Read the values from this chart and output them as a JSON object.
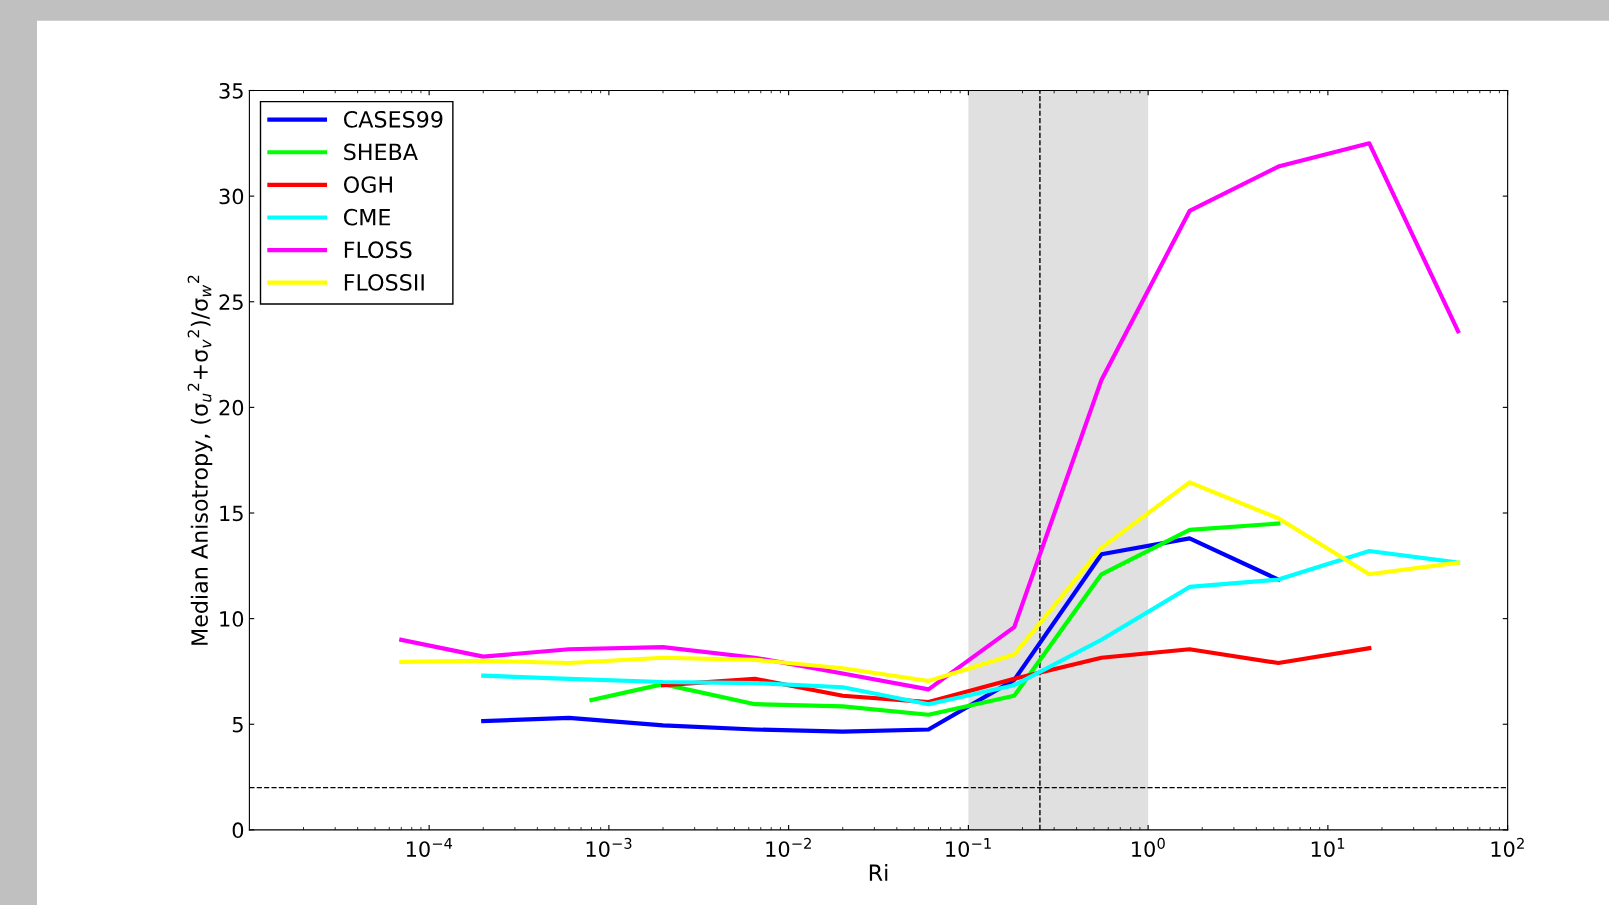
{
  "chart_data": {
    "type": "line",
    "xlabel": "Ri",
    "ylabel": "Median Anisotropy, (σ$_{u}$$^{2}$+σ$_{v}$$^{2}$)/σ$_{w}$$^{2}$",
    "log": "x",
    "xlim": [
      1e-05,
      100
    ],
    "ylim": [
      0,
      35
    ],
    "xticks": [
      {
        "value": 0.0001,
        "label": "10$^{−4}$"
      },
      {
        "value": 0.001,
        "label": "10$^{−3}$"
      },
      {
        "value": 0.01,
        "label": "10$^{−2}$"
      },
      {
        "value": 0.1,
        "label": "10$^{−1}$"
      },
      {
        "value": 1,
        "label": "10$^{0}$"
      },
      {
        "value": 10,
        "label": "10$^{1}$"
      },
      {
        "value": 100,
        "label": "10$^{2}$"
      }
    ],
    "yticks": [
      0,
      5,
      10,
      15,
      20,
      25,
      30,
      35
    ],
    "grid": false,
    "legend": "top left",
    "marker": "none",
    "line_style": "solid",
    "bands": [
      {
        "axis": "x",
        "from": 0.1,
        "to": 1,
        "color": "#e0e0e0"
      }
    ],
    "ref_lines": [
      {
        "axis": "x",
        "value": 0.25,
        "color": "#000000",
        "line_style": "dashed"
      },
      {
        "axis": "y",
        "value": 2,
        "color": "#000000",
        "line_style": "dashed"
      }
    ],
    "series": [
      {
        "name": "CASES99",
        "color": "#0000ff",
        "x": [
          0.0002,
          0.0006,
          0.002,
          0.0065,
          0.02,
          0.06,
          0.18,
          0.55,
          1.7,
          5.3
        ],
        "values": [
          5.15,
          5.3,
          4.95,
          4.75,
          4.65,
          4.75,
          7.1,
          13.05,
          13.8,
          11.85
        ]
      },
      {
        "name": "SHEBA",
        "color": "#00ff00",
        "x": [
          0.0008,
          0.002,
          0.0065,
          0.02,
          0.06,
          0.18,
          0.55,
          1.7,
          5.3
        ],
        "values": [
          6.15,
          6.9,
          5.95,
          5.85,
          5.45,
          6.35,
          12.1,
          14.2,
          14.5
        ]
      },
      {
        "name": "OGH",
        "color": "#ff0000",
        "x": [
          0.002,
          0.0065,
          0.02,
          0.06,
          0.18,
          0.55,
          1.7,
          5.3,
          17
        ],
        "values": [
          6.85,
          7.15,
          6.35,
          6.05,
          7.15,
          8.15,
          8.55,
          7.9,
          8.6
        ]
      },
      {
        "name": "CME",
        "color": "#00ffff",
        "x": [
          0.0002,
          0.0006,
          0.002,
          0.0065,
          0.02,
          0.06,
          0.18,
          0.55,
          1.7,
          5.3,
          17,
          53
        ],
        "values": [
          7.3,
          7.15,
          7.0,
          6.95,
          6.75,
          5.95,
          6.85,
          9.0,
          11.5,
          11.85,
          13.2,
          12.65
        ]
      },
      {
        "name": "FLOSS",
        "color": "#ff00ff",
        "x": [
          7e-05,
          0.0002,
          0.0006,
          0.002,
          0.0065,
          0.02,
          0.06,
          0.18,
          0.55,
          1.7,
          5.3,
          17,
          53
        ],
        "values": [
          9.0,
          8.2,
          8.55,
          8.65,
          8.15,
          7.4,
          6.65,
          9.6,
          21.3,
          29.3,
          31.4,
          32.5,
          23.6
        ]
      },
      {
        "name": "FLOSSII",
        "color": "#ffff00",
        "x": [
          7e-05,
          0.0002,
          0.0006,
          0.002,
          0.0065,
          0.02,
          0.06,
          0.18,
          0.55,
          1.7,
          5.3,
          17,
          53
        ],
        "values": [
          7.95,
          8.0,
          7.9,
          8.15,
          8.05,
          7.65,
          7.05,
          8.3,
          13.35,
          16.45,
          14.75,
          12.1,
          12.65
        ]
      }
    ]
  }
}
